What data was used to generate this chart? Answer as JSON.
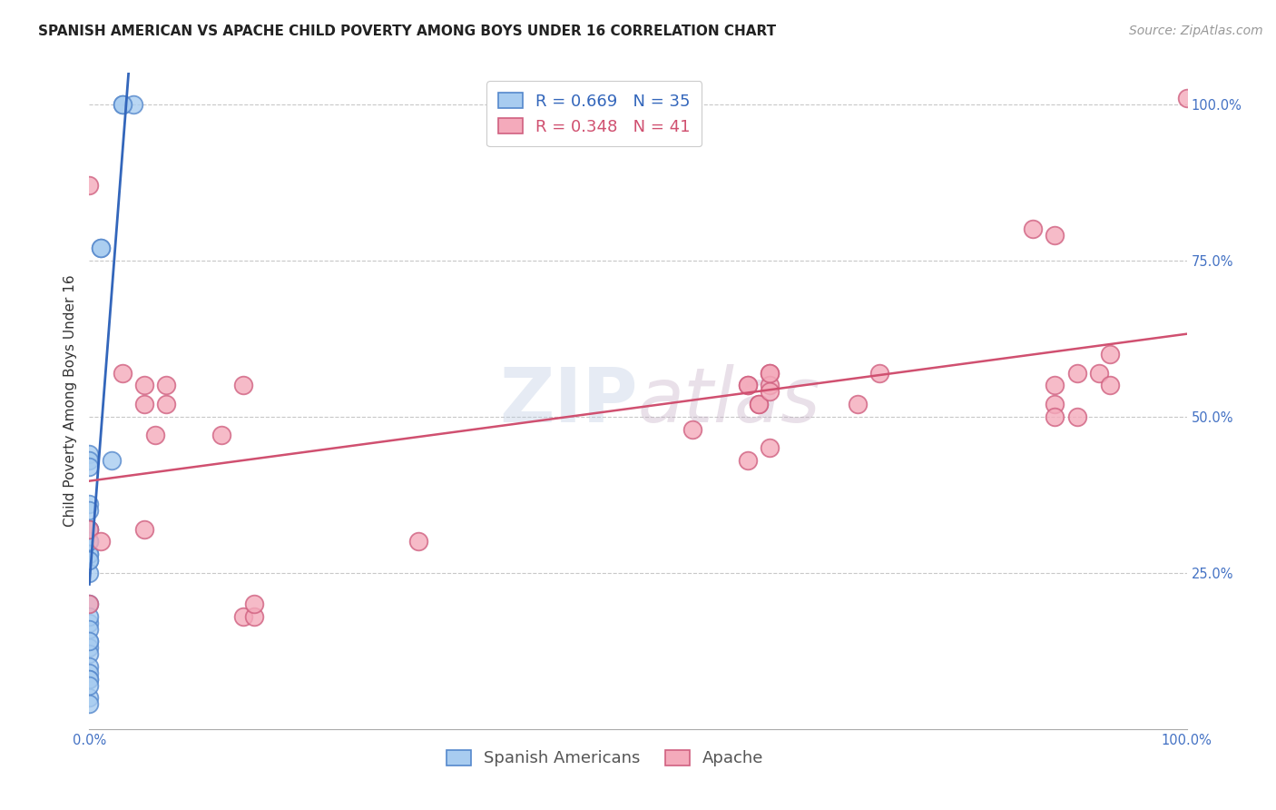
{
  "title": "SPANISH AMERICAN VS APACHE CHILD POVERTY AMONG BOYS UNDER 16 CORRELATION CHART",
  "source": "Source: ZipAtlas.com",
  "ylabel": "Child Poverty Among Boys Under 16",
  "watermark": "ZIPatlas",
  "xlim": [
    0.0,
    1.0
  ],
  "ylim": [
    0.0,
    1.05
  ],
  "xticks": [
    0.0,
    0.25,
    0.5,
    0.75,
    1.0
  ],
  "yticks": [
    0.25,
    0.5,
    0.75,
    1.0
  ],
  "xtick_labels": [
    "0.0%",
    "",
    "",
    "",
    "100.0%"
  ],
  "ytick_labels": [
    "25.0%",
    "50.0%",
    "75.0%",
    "100.0%"
  ],
  "blue_R": 0.669,
  "blue_N": 35,
  "pink_R": 0.348,
  "pink_N": 41,
  "blue_color": "#A8CCF0",
  "pink_color": "#F4AABB",
  "blue_edge_color": "#5588CC",
  "pink_edge_color": "#D06080",
  "blue_line_color": "#3366BB",
  "pink_line_color": "#D05070",
  "grid_color": "#C8C8C8",
  "bg_color": "#FFFFFF",
  "blue_scatter_x": [
    0.03,
    0.04,
    0.03,
    0.0,
    0.0,
    0.01,
    0.01,
    0.0,
    0.0,
    0.0,
    0.0,
    0.0,
    0.0,
    0.0,
    0.0,
    0.0,
    0.0,
    0.0,
    0.0,
    0.0,
    0.0,
    0.0,
    0.0,
    0.0,
    0.0,
    0.0,
    0.0,
    0.0,
    0.0,
    0.0,
    0.0,
    0.0,
    0.0,
    0.0,
    0.02
  ],
  "blue_scatter_y": [
    1.0,
    1.0,
    1.0,
    0.44,
    0.43,
    0.77,
    0.77,
    0.42,
    0.36,
    0.35,
    0.32,
    0.3,
    0.28,
    0.27,
    0.25,
    0.28,
    0.27,
    0.2,
    0.17,
    0.14,
    0.13,
    0.12,
    0.1,
    0.09,
    0.08,
    0.05,
    0.04,
    0.18,
    0.16,
    0.3,
    0.32,
    0.14,
    0.08,
    0.07,
    0.43
  ],
  "pink_scatter_x": [
    0.0,
    0.03,
    0.05,
    0.05,
    0.07,
    0.07,
    0.06,
    0.05,
    0.0,
    0.0,
    0.01,
    0.14,
    0.15,
    0.15,
    0.12,
    0.14,
    0.6,
    0.61,
    0.62,
    0.62,
    0.7,
    0.72,
    0.86,
    0.88,
    0.88,
    0.9,
    0.92,
    0.93,
    0.93,
    1.0,
    0.55,
    0.6,
    0.61,
    0.62,
    0.62,
    0.88,
    0.88,
    0.9,
    0.3,
    0.6,
    0.62
  ],
  "pink_scatter_y": [
    0.87,
    0.57,
    0.55,
    0.52,
    0.55,
    0.52,
    0.47,
    0.32,
    0.32,
    0.2,
    0.3,
    0.18,
    0.18,
    0.2,
    0.47,
    0.55,
    0.55,
    0.52,
    0.57,
    0.55,
    0.52,
    0.57,
    0.8,
    0.79,
    0.55,
    0.5,
    0.57,
    0.55,
    0.6,
    1.01,
    0.48,
    0.55,
    0.52,
    0.57,
    0.54,
    0.52,
    0.5,
    0.57,
    0.3,
    0.43,
    0.45
  ],
  "title_fontsize": 11,
  "label_fontsize": 11,
  "tick_fontsize": 10.5,
  "legend_fontsize": 13,
  "source_fontsize": 10
}
